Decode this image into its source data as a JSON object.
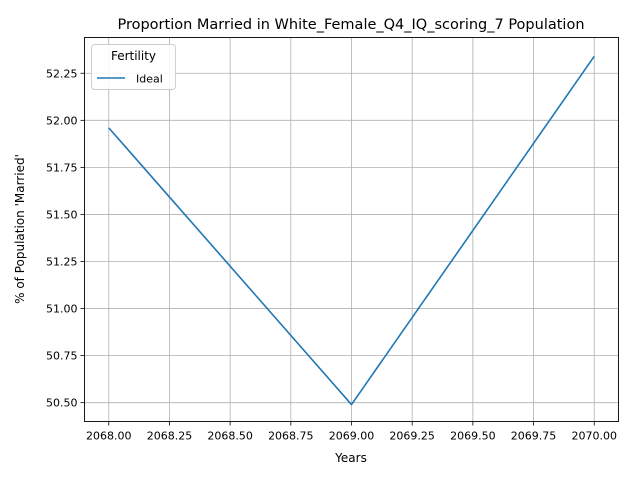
{
  "chart_data": {
    "type": "line",
    "title": "Proportion Married in White_Female_Q4_IQ_scoring_7 Population",
    "xlabel": "Years",
    "ylabel": "% of Population 'Married'",
    "xlim": [
      2067.9,
      2070.1
    ],
    "ylim": [
      50.4,
      52.44
    ],
    "x_ticks": [
      "2068.00",
      "2068.25",
      "2068.50",
      "2068.75",
      "2069.00",
      "2069.25",
      "2069.50",
      "2069.75",
      "2070.00"
    ],
    "y_ticks": [
      "50.50",
      "50.75",
      "51.00",
      "51.25",
      "51.50",
      "51.75",
      "52.00",
      "52.25"
    ],
    "grid": true,
    "legend": {
      "title": "Fertility",
      "position": "top-left"
    },
    "series": [
      {
        "name": "Ideal",
        "color": "#1f77b4",
        "x": [
          2068,
          2069,
          2070
        ],
        "y": [
          51.96,
          50.49,
          52.34
        ]
      }
    ]
  }
}
